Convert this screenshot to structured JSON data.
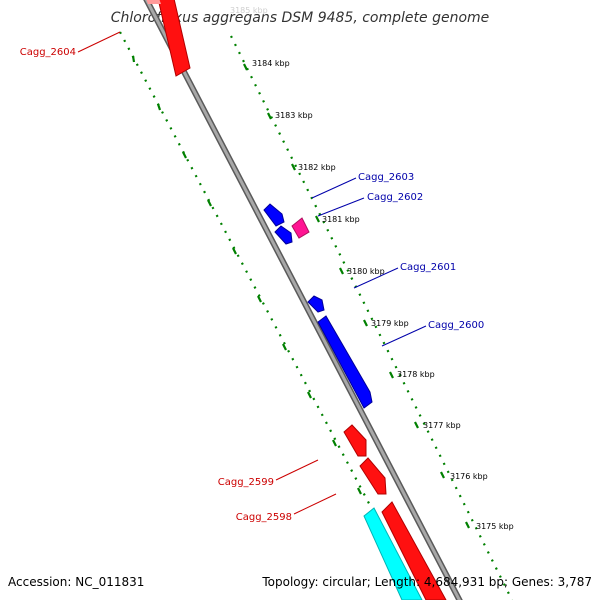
{
  "title": "Chloroflexus aggregans DSM 9485, complete genome",
  "footer": {
    "accession": "Accession: NC_011831",
    "topology": "Topology: circular; Length: 4,684,931 bp; Genes: 3,787"
  },
  "colors": {
    "backbone": "#888888",
    "forward_gene": "#ff0000",
    "reverse_gene": "#0000ff",
    "other_gene": "#ff1493",
    "rna_gene": "#00ffff",
    "tick_dots": "#008000",
    "forward_label": "#cc0000",
    "reverse_label": "#0000aa"
  },
  "ticks": [
    {
      "label": "3185 kbp",
      "faded": true
    },
    {
      "label": "3184 kbp"
    },
    {
      "label": "3183 kbp"
    },
    {
      "label": "3182 kbp"
    },
    {
      "label": "3181 kbp"
    },
    {
      "label": "3180 kbp"
    },
    {
      "label": "3179 kbp"
    },
    {
      "label": "3178 kbp"
    },
    {
      "label": "3177 kbp"
    },
    {
      "label": "3176 kbp"
    },
    {
      "label": "3175 kbp"
    }
  ],
  "gene_labels": {
    "cagg_2604": "Cagg_2604",
    "cagg_2603": "Cagg_2603",
    "cagg_2602": "Cagg_2602",
    "cagg_2601": "Cagg_2601",
    "cagg_2600": "Cagg_2600",
    "cagg_2599": "Cagg_2599",
    "cagg_2598": "Cagg_2598"
  }
}
